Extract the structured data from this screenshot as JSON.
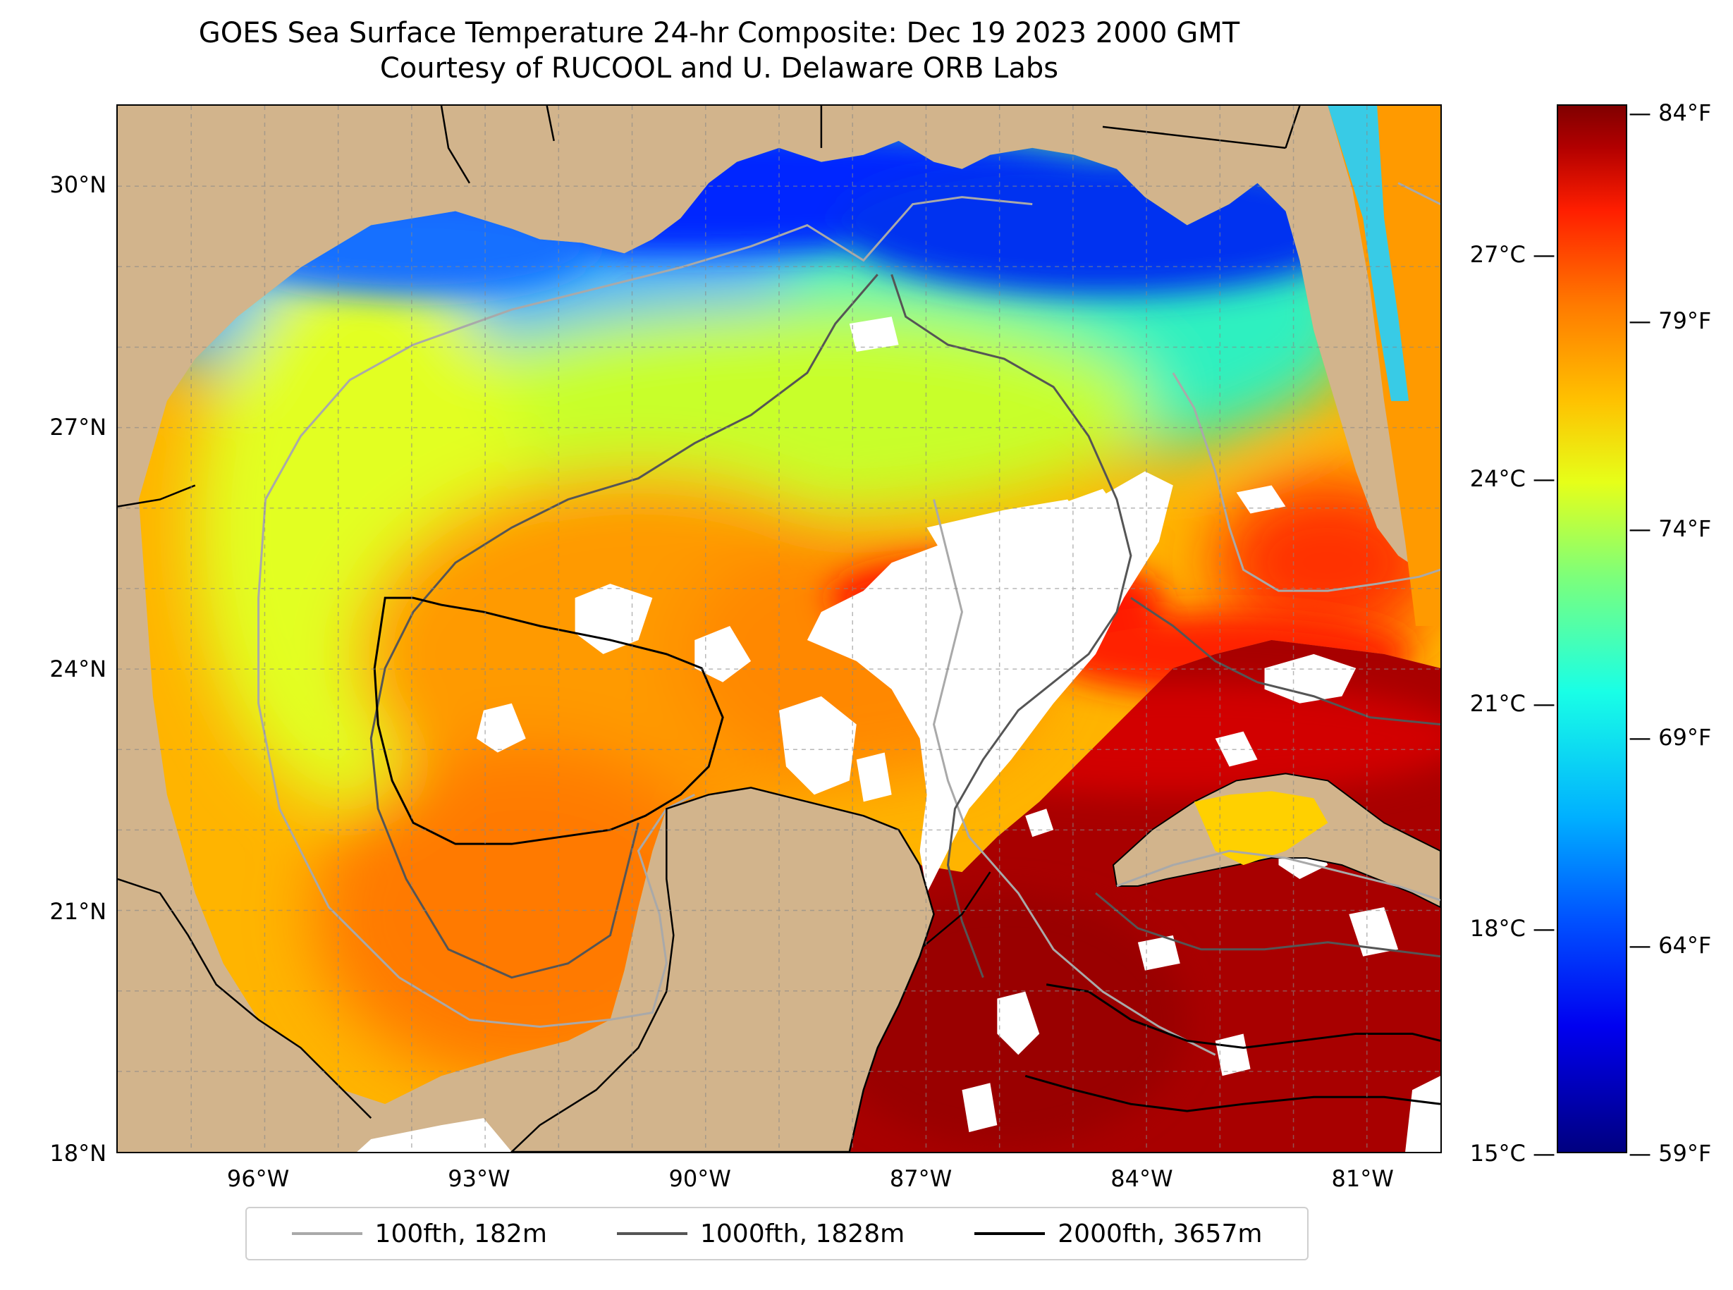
{
  "title": {
    "line1": "GOES Sea Surface Temperature 24-hr Composite: Dec 19 2023 2000 GMT",
    "line2": "Courtesy of RUCOOL and U. Delaware ORB Labs"
  },
  "axes": {
    "lat_ticks": [
      "30°N",
      "27°N",
      "24°N",
      "21°N",
      "18°N"
    ],
    "lon_ticks": [
      "96°W",
      "93°W",
      "90°W",
      "87°W",
      "84°W",
      "81°W"
    ]
  },
  "colorbar": {
    "celsius_ticks": [
      "27°C",
      "24°C",
      "21°C",
      "18°C",
      "15°C"
    ],
    "fahrenheit_ticks": [
      "84°F",
      "79°F",
      "74°F",
      "69°F",
      "64°F",
      "59°F"
    ],
    "colormap": "jet",
    "range_celsius": [
      15,
      29
    ]
  },
  "legend": {
    "items": [
      {
        "label": "100fth, 182m",
        "color": "#a9a9a9"
      },
      {
        "label": "1000fth, 1828m",
        "color": "#555555"
      },
      {
        "label": "2000fth, 3657m",
        "color": "#000000"
      }
    ]
  },
  "map": {
    "land_color": "#d2b48c",
    "cloud_color": "#ffffff",
    "extent": {
      "lon": [
        -98,
        -80
      ],
      "lat": [
        18,
        31
      ]
    }
  }
}
